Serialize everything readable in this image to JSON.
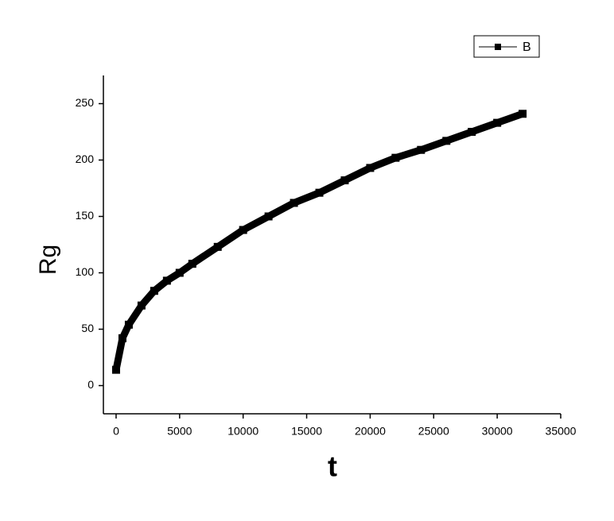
{
  "chart_data": {
    "type": "line",
    "x_label": "t",
    "y_label": "Rg",
    "x": [
      0,
      500,
      1000,
      2000,
      3000,
      4000,
      5000,
      6000,
      8000,
      10000,
      12000,
      14000,
      16000,
      18000,
      20000,
      22000,
      24000,
      26000,
      28000,
      30000,
      32000
    ],
    "series": [
      {
        "name": "B",
        "color": "#000000",
        "values": [
          14,
          42,
          54,
          71,
          84,
          93,
          100,
          108,
          123,
          138,
          150,
          162,
          171,
          182,
          193,
          202,
          209,
          217,
          225,
          233,
          241
        ]
      }
    ],
    "xlim": [
      -1000,
      35000
    ],
    "xticks": [
      0,
      5000,
      10000,
      15000,
      20000,
      25000,
      30000,
      35000
    ],
    "ylim": [
      -25,
      275
    ],
    "yticks": [
      0,
      50,
      100,
      150,
      200,
      250
    ],
    "legend": "top-right"
  }
}
